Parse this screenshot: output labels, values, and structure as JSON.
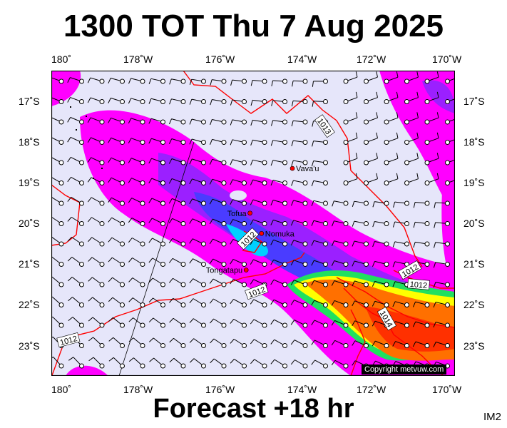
{
  "title": "1300 TOT Thu 7 Aug 2025",
  "footer": "Forecast +18 hr",
  "tag": "IM2",
  "copyright": "Copyright metvuw.com",
  "lon_labels": [
    "180˚",
    "178˚W",
    "176˚W",
    "174˚W",
    "172˚W",
    "170˚W"
  ],
  "lat_labels": [
    "17˚S",
    "18˚S",
    "19˚S",
    "20˚S",
    "21˚S",
    "22˚S",
    "23˚S"
  ],
  "places": [
    {
      "name": "Vava'u",
      "lon": -174.0,
      "lat": -18.65
    },
    {
      "name": "Tofua",
      "lon": -175.1,
      "lat": -19.75
    },
    {
      "name": "Nomuka",
      "lon": -174.8,
      "lat": -20.25
    },
    {
      "name": "Tongatapu",
      "lon": -175.2,
      "lat": -21.15
    }
  ],
  "isobar_labels": [
    "1013",
    "1012",
    "1012",
    "1012",
    "1012",
    "1012",
    "1014"
  ],
  "colors": {
    "background": "#e6e6fa",
    "rain_light": "#ff00ff",
    "rain_moderate": "#9b20ff",
    "rain_heavy": "#4a3cff",
    "rain_cyan": "#00d0ff",
    "rain_green": "#20e060",
    "rain_yellow": "#ffff00",
    "rain_orange": "#ff7000",
    "rain_red": "#ff3000",
    "isobar": "#ff0000"
  }
}
